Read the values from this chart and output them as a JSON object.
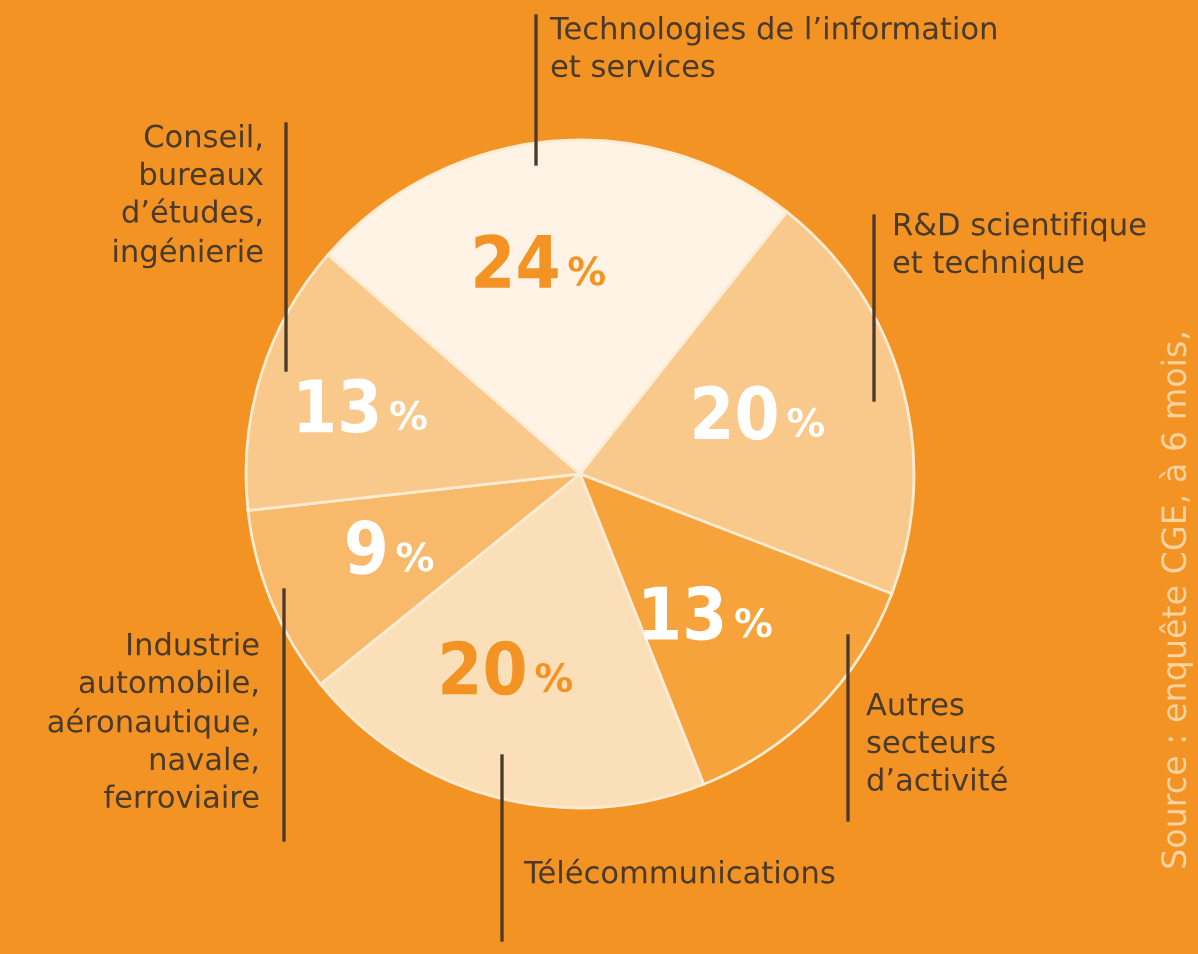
{
  "chart_data": {
    "type": "pie",
    "categories": [
      "Technologies de l’information\net services",
      "R&D scientifique\net technique",
      "Autres\nsecteurs\nd’activité",
      "Télécommunications",
      "Industrie\nautomobile,\naéronautique,\nnavale,\nferroviaire",
      "Conseil,\nbureaux\nd’études,\ningénierie"
    ],
    "values": [
      24,
      20,
      13,
      20,
      9,
      13
    ],
    "colors": [
      "#fef3e4",
      "#f9c98c",
      "#f6a33c",
      "#fbdfb8",
      "#f8b96a",
      "#f9c98c"
    ],
    "value_labels": [
      "24 %",
      "20 %",
      "13 %",
      "20 %",
      "9 %",
      "13 %"
    ],
    "annotations": [
      "Source : enquête CGE, à 6 mois,"
    ]
  }
}
